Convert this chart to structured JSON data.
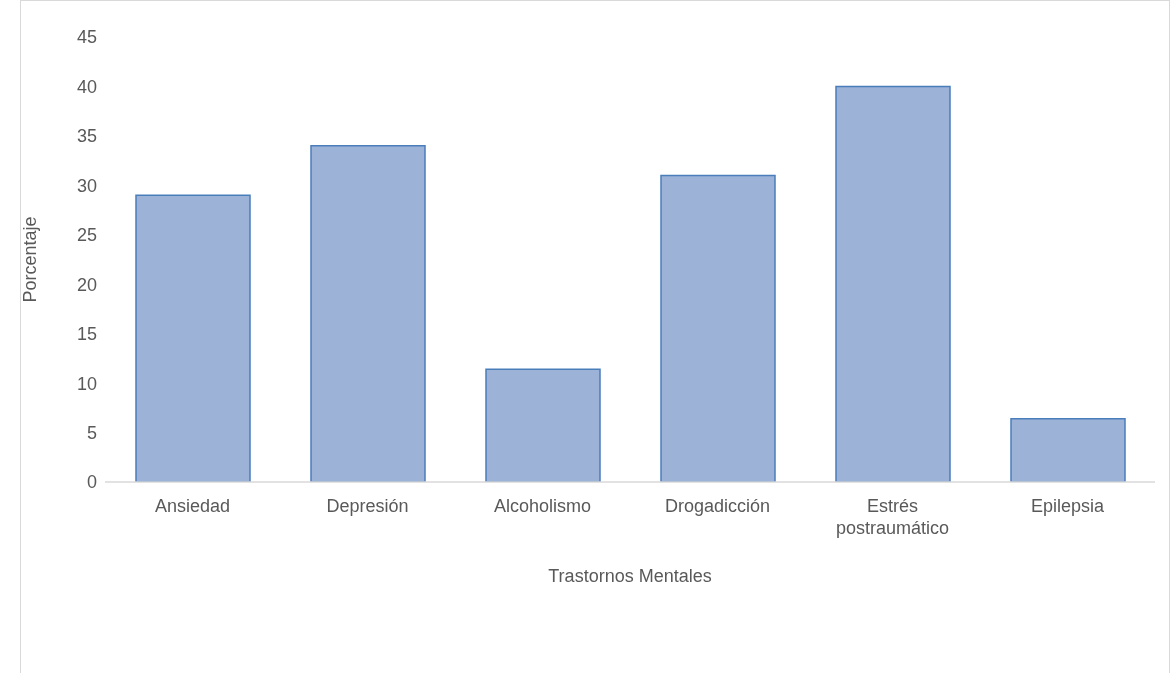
{
  "chart_data": {
    "type": "bar",
    "xlabel": "Trastornos Mentales",
    "ylabel": "Porcentaje",
    "categories": [
      "Ansiedad",
      "Depresión",
      "Alcoholismo",
      "Drogadicción",
      "Estrés postraumático",
      "Epilepsia"
    ],
    "values": [
      29,
      34,
      11.4,
      31,
      40,
      6.4
    ],
    "color": "#9db2d7",
    "ylim": [
      0,
      45
    ],
    "yticks": [
      0,
      5,
      10,
      15,
      20,
      25,
      30,
      35,
      40,
      45
    ],
    "grid": false,
    "legend": false
  }
}
